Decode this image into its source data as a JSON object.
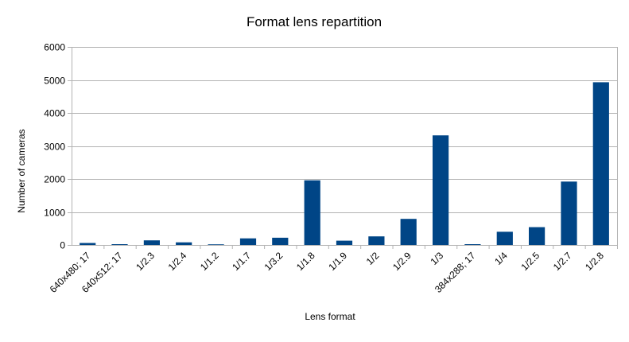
{
  "chart_data": {
    "type": "bar",
    "title": "Format lens repartition",
    "xlabel": "Lens format",
    "ylabel": "Number of cameras",
    "ylim": [
      0,
      6000
    ],
    "yticks": [
      0,
      1000,
      2000,
      3000,
      4000,
      5000,
      6000
    ],
    "grid": true,
    "legend": "none",
    "bar_color": "#004586",
    "categories": [
      "640x480; 17",
      "640x512; 17",
      "1/2.3",
      "1/2.4",
      "1/1.2",
      "1/1.7",
      "1/3.2",
      "1/1.8",
      "1/1.9",
      "1/2",
      "1/2.9",
      "1/3",
      "384x288; 17",
      "1/4",
      "1/2.5",
      "1/2.7",
      "1/2.8"
    ],
    "values": [
      60,
      25,
      140,
      80,
      20,
      200,
      220,
      1960,
      130,
      260,
      790,
      3320,
      25,
      400,
      540,
      1920,
      4930
    ]
  }
}
